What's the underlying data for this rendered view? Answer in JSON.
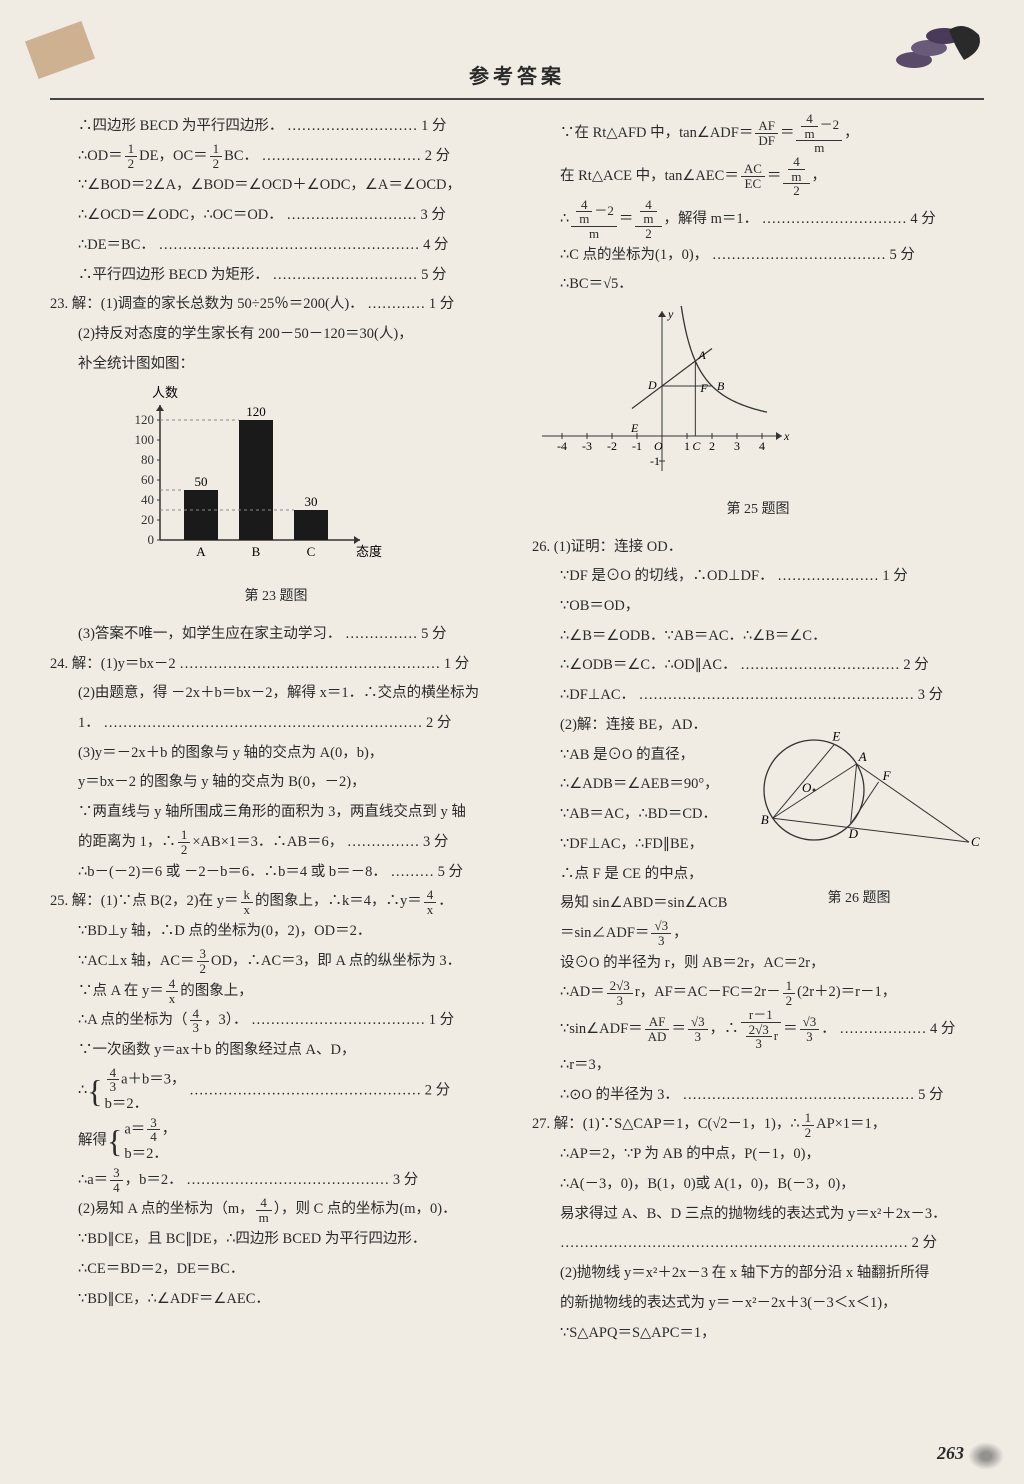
{
  "header": {
    "title": "参考答案"
  },
  "page_number": "263",
  "chart23": {
    "type": "bar",
    "y_label": "人数",
    "x_label": "态度",
    "categories": [
      "A",
      "B",
      "C"
    ],
    "values": [
      50,
      120,
      30
    ],
    "ylim": [
      0,
      135
    ],
    "yticks": [
      0,
      20,
      40,
      60,
      80,
      100,
      120
    ],
    "bar_color": "#1a1a1a",
    "axis_color": "#333333",
    "guide_color": "#888888",
    "label_fontsize": 13
  },
  "graph25": {
    "x_ticks": [
      "-4",
      "-3",
      "-2",
      "-1",
      "O",
      "1",
      "2",
      "3",
      "4"
    ],
    "y_tick_neg": "-1",
    "labels": {
      "A": "A",
      "B": "B",
      "C": "C",
      "D": "D",
      "E": "E",
      "F": "F",
      "x": "x",
      "y": "y"
    },
    "axis_color": "#333333",
    "curve_color": "#333333"
  },
  "circle26": {
    "labels": {
      "A": "A",
      "B": "B",
      "C": "C",
      "D": "D",
      "E": "E",
      "F": "F",
      "O": "O"
    },
    "stroke": "#333333"
  },
  "captions": {
    "fig23": "第 23 题图",
    "fig25": "第 25 题图",
    "fig26": "第 26 题图"
  },
  "left": {
    "l1": "∴四边形 BECD 为平行四边形．",
    "s1": "1 分",
    "l2a": "∴OD＝",
    "l2b": "DE，OC＝",
    "l2c": "BC．",
    "s2": "2 分",
    "l3": "∵∠BOD＝2∠A，∠BOD＝∠OCD＋∠ODC，∠A＝∠OCD，",
    "l4": "∴∠OCD＝∠ODC，∴OC＝OD．",
    "s4": "3 分",
    "l5": "∴DE＝BC．",
    "s5": "4 分",
    "l6": "∴平行四边形 BECD 为矩形．",
    "s6": "5 分",
    "l7": "23. 解：(1)调查的家长总数为 50÷25％＝200(人)．",
    "s7": "1 分",
    "l8": "(2)持反对态度的学生家长有 200－50－120＝30(人)，",
    "l9": "补全统计图如图：",
    "l10": "(3)答案不唯一，如学生应在家主动学习．",
    "s10": "5 分",
    "l11": "24. 解：(1)y＝bx－2",
    "s11": "1 分",
    "l12": "(2)由题意，得 －2x＋b＝bx－2，解得 x＝1．∴交点的横坐标为",
    "l13": "1．",
    "s13": "2 分",
    "l14": "(3)y＝－2x＋b 的图象与 y 轴的交点为 A(0，b)，",
    "l15": "y＝bx－2 的图象与 y 轴的交点为 B(0，－2)，",
    "l16": "∵两直线与 y 轴所围成三角形的面积为 3，两直线交点到 y 轴",
    "l17a": "的距离为 1，∴",
    "l17b": "×AB×1＝3．∴AB＝6，",
    "s17": "3 分",
    "l18": "∴b－(－2)＝6 或 －2－b＝6．∴b＝4 或 b＝－8．",
    "s18": "5 分",
    "l19a": "25. 解：(1)∵点 B(2，2)在 y＝",
    "l19b": "的图象上，∴k＝4，∴y＝",
    "l19c": "．",
    "l20": "∵BD⊥y 轴，∴D 点的坐标为(0，2)，OD＝2．",
    "l21a": "∵AC⊥x 轴，AC＝",
    "l21b": "OD，∴AC＝3，即 A 点的纵坐标为 3．",
    "l22a": "∵点 A 在 y＝",
    "l22b": "的图象上，",
    "l23a": "∴A 点的坐标为",
    "l23b": "．",
    "s23": "1 分",
    "l24": "∵一次函数 y＝ax＋b 的图象经过点 A、D，",
    "l25a": "∴",
    "l25b": "a＋b＝3，",
    "l25c": "b＝2．",
    "s25": "2 分",
    "l26a": "解得",
    "l26b": "a＝",
    "l26c": "，",
    "l26d": "b＝2．",
    "l27a": "∴a＝",
    "l27b": "，b＝2．",
    "s27": "3 分",
    "l28a": "(2)易知 A 点的坐标为",
    "l28b": "，则 C 点的坐标为(m，0)．",
    "l29": "∵BD∥CE，且 BC∥DE，∴四边形 BCED 为平行四边形．",
    "l30": "∴CE＝BD＝2，DE＝BC．",
    "l31": "∵BD∥CE，∴∠ADF＝∠AEC．"
  },
  "right": {
    "r1a": "∵在 Rt△AFD 中，tan∠ADF＝",
    "r1b": "＝",
    "r2a": "在 Rt△ACE 中，tan∠AEC＝",
    "r2b": "＝",
    "r3a": "∴",
    "r3b": "＝",
    "r3c": "，解得 m＝1．",
    "s3": "4 分",
    "r4": "∴C 点的坐标为(1，0)，",
    "s4": "5 分",
    "r5": "∴BC＝√5．",
    "r6": "26. (1)证明：连接 OD．",
    "r7": "∵DF 是⊙O 的切线，∴OD⊥DF．",
    "s7": "1 分",
    "r8": "∵OB＝OD，",
    "r9": "∴∠B＝∠ODB．∵AB＝AC．∴∠B＝∠C．",
    "r10": "∴∠ODB＝∠C．∴OD∥AC．",
    "s10": "2 分",
    "r11": "∴DF⊥AC．",
    "s11": "3 分",
    "r12": "(2)解：连接 BE，AD．",
    "r13": "∵AB 是⊙O 的直径，",
    "r14": "∴∠ADB＝∠AEB＝90°，",
    "r15": "∵AB＝AC，∴BD＝CD．",
    "r16": "∵DF⊥AC，∴FD∥BE，",
    "r17": "∴点 F 是 CE 的中点，",
    "r18": "易知 sin∠ABD＝sin∠ACB",
    "r19a": "＝sin∠ADF＝",
    "r19b": "，",
    "r20": "设⊙O 的半径为 r，则 AB＝2r，AC＝2r，",
    "r21a": "∴AD＝",
    "r21b": "r，AF＝AC－FC＝2r－",
    "r21c": "(2r＋2)＝r－1，",
    "r22a": "∵sin∠ADF＝",
    "r22b": "＝",
    "r22c": "，∴",
    "r22d": "＝",
    "r22e": "．",
    "s22": "4 分",
    "r23": "∴r＝3，",
    "r24": "∴⊙O 的半径为 3．",
    "s24": "5 分",
    "r25a": "27. 解：(1)∵S△CAP＝1，C(√2－1，1)，∴",
    "r25b": "AP×1＝1，",
    "r26": "∴AP＝2，∵P 为 AB 的中点，P(－1，0)，",
    "r27": "∴A(－3，0)，B(1，0)或 A(1，0)，B(－3，0)，",
    "r28": "易求得过 A、B、D 三点的抛物线的表达式为 y＝x²＋2x－3．",
    "s28": "2 分",
    "r29": "(2)抛物线 y＝x²＋2x－3 在 x 轴下方的部分沿 x 轴翻折所得",
    "r30": "的新抛物线的表达式为 y＝－x²－2x＋3(－3＜x＜1)，",
    "r31": "∵S△APQ＝S△APC＝1，"
  }
}
